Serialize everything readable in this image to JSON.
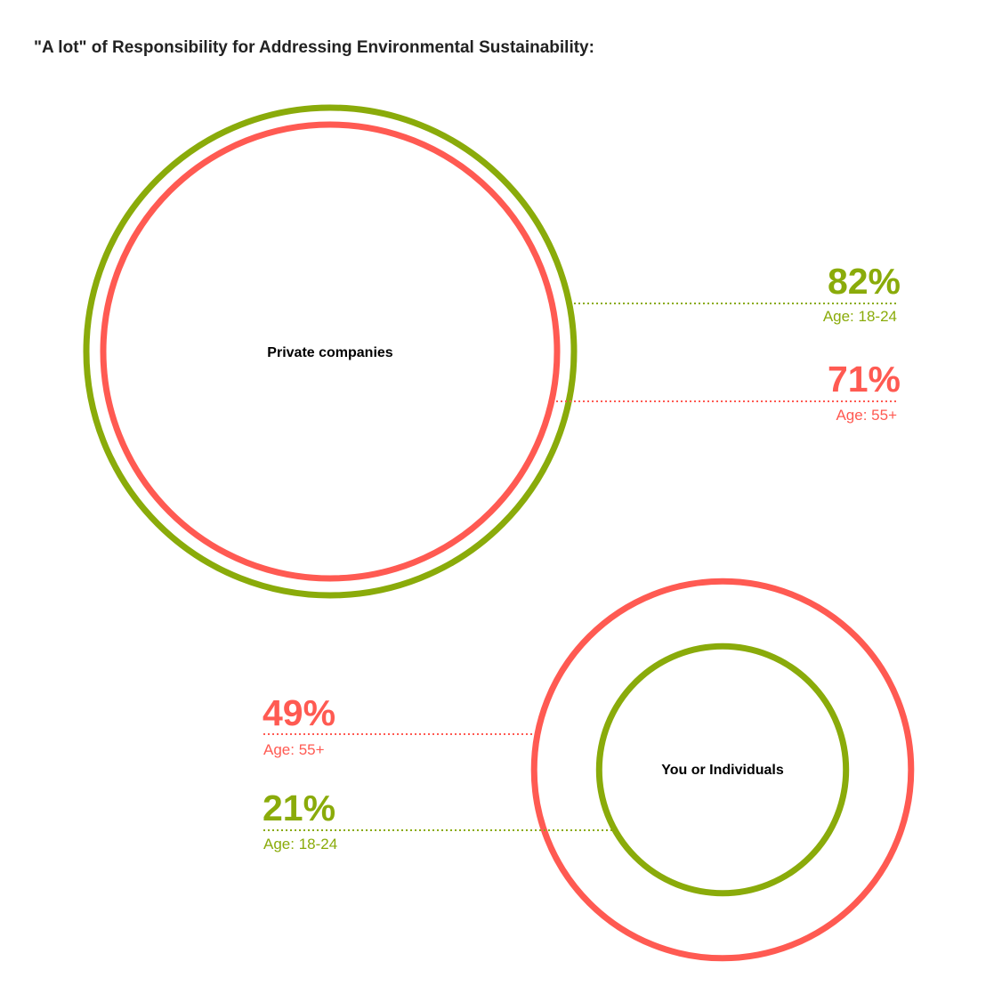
{
  "colors": {
    "age_18_24": "#8aab0a",
    "age_55_plus": "#ff5a52"
  },
  "chart_data": {
    "type": "bubble",
    "title": "\"A lot\" of Responsibility for Addressing Environmental Sustainability:",
    "unit": "%",
    "groups": [
      {
        "category": "Private companies",
        "series": [
          {
            "name": "Age: 18-24",
            "value": 82,
            "label": "82%"
          },
          {
            "name": "Age: 55+",
            "value": 71,
            "label": "71%"
          }
        ]
      },
      {
        "category": "You or Individuals",
        "series": [
          {
            "name": "Age: 55+",
            "value": 49,
            "label": "49%"
          },
          {
            "name": "Age: 18-24",
            "value": 21,
            "label": "21%"
          }
        ]
      }
    ]
  }
}
